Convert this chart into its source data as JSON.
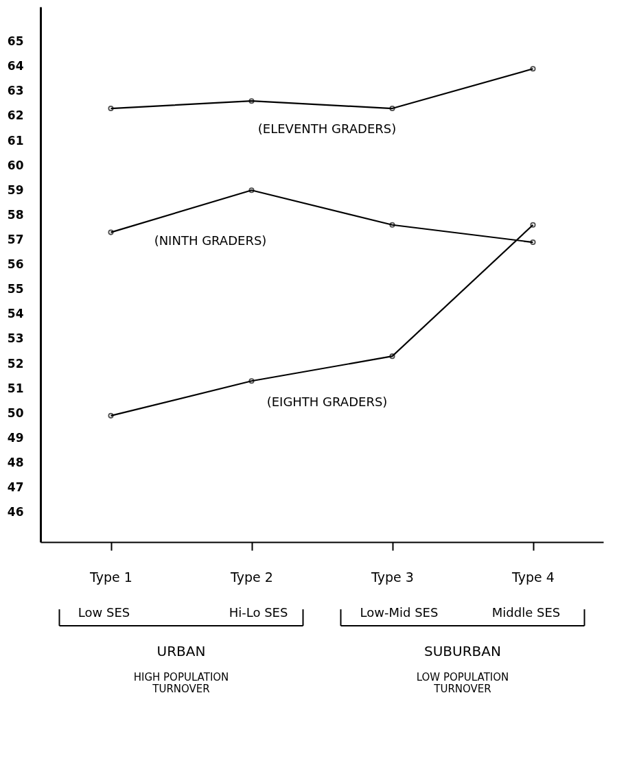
{
  "chart_data": {
    "type": "line",
    "categories": [
      "Type 1",
      "Type 2",
      "Type 3",
      "Type 4"
    ],
    "series": [
      {
        "name": "(ELEVENTH GRADERS)",
        "color": "#000000",
        "values": [
          62.3,
          62.6,
          62.3,
          63.9
        ]
      },
      {
        "name": "(NINTH GRADERS)",
        "color": "#000000",
        "values": [
          57.3,
          59.0,
          57.6,
          56.9
        ]
      },
      {
        "name": "(EIGHTH GRADERS)",
        "color": "#000000",
        "values": [
          49.9,
          51.3,
          52.3,
          57.6
        ]
      }
    ],
    "ylim": [
      44.8,
      66.4
    ],
    "yticks": [
      46,
      47,
      48,
      49,
      50,
      51,
      52,
      53,
      54,
      55,
      56,
      57,
      58,
      59,
      60,
      61,
      62,
      63,
      64,
      65
    ],
    "annotations": [
      "Low SES",
      "Hi-Lo SES",
      "Low-Mid SES",
      "Middle SES",
      "URBAN",
      "HIGH POPULATION TURNOVER",
      "SUBURBAN",
      "LOW POPULATION TURNOVER"
    ],
    "marker": "circle",
    "line_style": "solid",
    "grid": false,
    "legend": false
  }
}
